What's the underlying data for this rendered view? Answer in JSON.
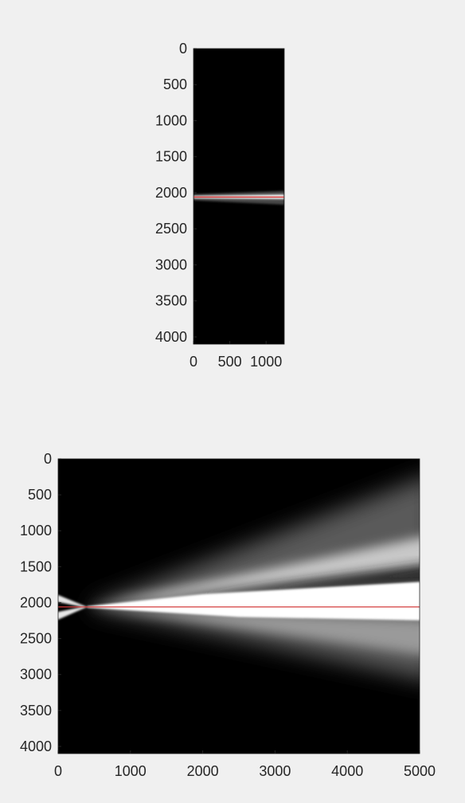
{
  "chart_data": [
    {
      "type": "heatmap",
      "colormap": "gray",
      "title": "",
      "xlabel": "",
      "ylabel": "",
      "xlim": [
        0,
        1250
      ],
      "ylim": [
        0,
        4100
      ],
      "y_reversed": true,
      "x_ticks": [
        0,
        500,
        1000
      ],
      "x_tick_labels": [
        "0",
        "500",
        "1000"
      ],
      "y_ticks": [
        0,
        500,
        1000,
        1500,
        2000,
        2500,
        3000,
        3500,
        4000
      ],
      "y_tick_labels": [
        "0",
        "500",
        "1000",
        "1500",
        "2000",
        "2500",
        "3000",
        "3500",
        "4000"
      ],
      "grid": false,
      "background_value": 0,
      "bright_band": {
        "y_center": 2060,
        "y_halfwidth_start": 25,
        "y_halfwidth_end": 70
      },
      "overlay_line": {
        "color": "#d43c3c",
        "y": 2060
      }
    },
    {
      "type": "heatmap",
      "colormap": "gray",
      "title": "",
      "xlabel": "",
      "ylabel": "",
      "xlim": [
        0,
        5000
      ],
      "ylim": [
        0,
        4100
      ],
      "y_reversed": true,
      "x_ticks": [
        0,
        1000,
        2000,
        3000,
        4000,
        5000
      ],
      "x_tick_labels": [
        "0",
        "1000",
        "2000",
        "3000",
        "4000",
        "5000"
      ],
      "y_ticks": [
        0,
        500,
        1000,
        1500,
        2000,
        2500,
        3000,
        3500,
        4000
      ],
      "y_tick_labels": [
        "0",
        "500",
        "1000",
        "1500",
        "2000",
        "2500",
        "3000",
        "3500",
        "4000"
      ],
      "grid": false,
      "background_value": 0,
      "focus": {
        "x": 400,
        "y": 2060
      },
      "beam_upper_edge_at_x_max": 500,
      "beam_lower_edge_at_x_max": 2900,
      "overlay_line": {
        "color": "#d43c3c",
        "y": 2060
      }
    }
  ]
}
